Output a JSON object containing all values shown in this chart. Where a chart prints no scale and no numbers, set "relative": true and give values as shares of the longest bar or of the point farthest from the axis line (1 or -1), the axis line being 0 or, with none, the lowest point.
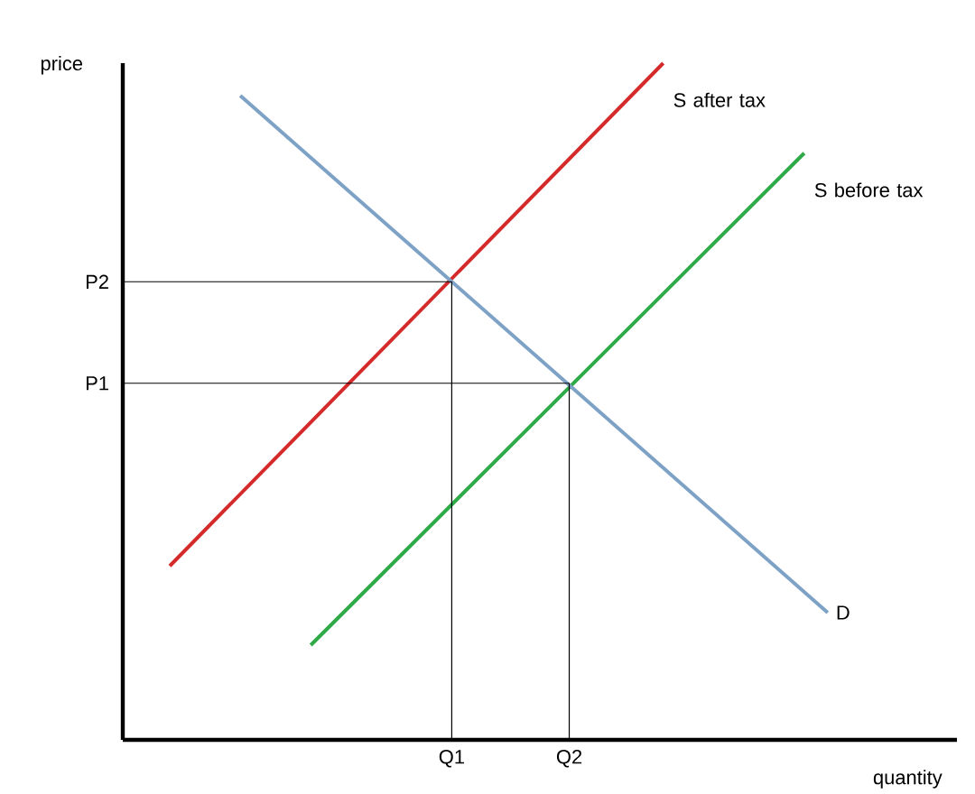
{
  "chart_data": {
    "type": "line",
    "xlabel": "quantity",
    "ylabel": "price",
    "relative": true,
    "legend": false,
    "marker": "none",
    "line_style": "solid",
    "categories": [
      null,
      null,
      null,
      null,
      null,
      null,
      null,
      null,
      null,
      null,
      null,
      null,
      null,
      null,
      "Q1",
      null,
      null,
      null,
      null,
      "Q2",
      null,
      null,
      null,
      null,
      null,
      null,
      null,
      null,
      null,
      null,
      null,
      null,
      null,
      null,
      null,
      null
    ],
    "series": [
      {
        "name": "S after tax",
        "color": "#d42a2a",
        "values": [
          null,
          null,
          0.257,
          null,
          null,
          null,
          null,
          null,
          null,
          null,
          null,
          null,
          null,
          null,
          null,
          null,
          null,
          null,
          null,
          null,
          null,
          null,
          null,
          1,
          null,
          null,
          null,
          null,
          null,
          null,
          null,
          null,
          null,
          null,
          null,
          null
        ]
      },
      {
        "name": "S before tax",
        "color": "#2eab47",
        "values": [
          null,
          null,
          null,
          null,
          null,
          null,
          null,
          null,
          0.14,
          null,
          null,
          null,
          null,
          null,
          null,
          null,
          null,
          null,
          null,
          null,
          null,
          null,
          null,
          null,
          null,
          null,
          null,
          null,
          null,
          0.867,
          null,
          null,
          null,
          null,
          null,
          null
        ]
      },
      {
        "name": "D",
        "color": "#7ea2c6",
        "values": [
          null,
          null,
          null,
          null,
          null,
          0.952,
          null,
          null,
          null,
          null,
          null,
          null,
          null,
          null,
          null,
          null,
          null,
          null,
          null,
          null,
          null,
          null,
          null,
          null,
          null,
          null,
          null,
          null,
          null,
          null,
          0.188,
          null,
          null,
          null,
          null,
          null
        ]
      },
      {
        "name": "P2",
        "color": "#000000",
        "values": [
          0.677,
          null,
          null,
          null,
          null,
          null,
          null,
          null,
          null,
          null,
          null,
          null,
          null,
          null,
          0.677,
          null,
          null,
          null,
          null,
          null,
          null,
          null,
          null,
          null,
          null,
          null,
          null,
          null,
          null,
          null,
          null,
          null,
          null,
          null,
          null,
          null
        ]
      },
      {
        "name": "P1",
        "color": "#000000",
        "values": [
          0.527,
          null,
          null,
          null,
          null,
          null,
          null,
          null,
          null,
          null,
          null,
          null,
          null,
          null,
          null,
          null,
          null,
          null,
          null,
          0.527,
          null,
          null,
          null,
          null,
          null,
          null,
          null,
          null,
          null,
          null,
          null,
          null,
          null,
          null,
          null,
          null
        ]
      }
    ]
  }
}
